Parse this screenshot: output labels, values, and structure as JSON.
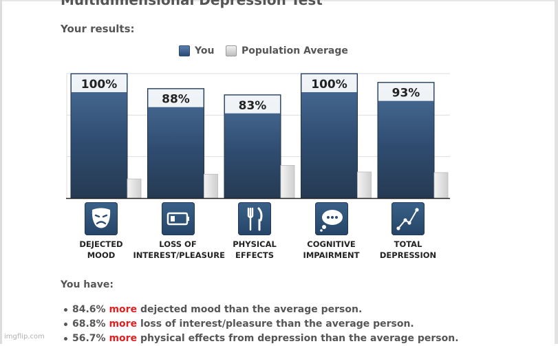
{
  "page": {
    "title": "Multidimensional Depression Test",
    "results_heading": "Your results:",
    "you_have_heading": "You have:",
    "watermark": "imgflip.com"
  },
  "colors": {
    "you_bar_top": "#4a6d97",
    "you_bar_bottom": "#263d58",
    "population_bar": "#d9d9d9",
    "highlight": "#e02020",
    "icon_tile": "#2f5479"
  },
  "chart_data": {
    "type": "bar",
    "title": "",
    "xlabel": "",
    "ylabel": "",
    "ylim": [
      0,
      100
    ],
    "grid": true,
    "legend_position": "top-center",
    "categories": [
      "DEJECTED\nMOOD",
      "LOSS OF\nINTEREST/PLEASURE",
      "PHYSICAL\nEFFECTS",
      "COGNITIVE\nIMPAIRMENT",
      "TOTAL\nDEPRESSION"
    ],
    "category_icons": [
      "sad-mask-icon",
      "low-battery-icon",
      "fork-knife-icon",
      "thought-bubble-icon",
      "line-graph-icon"
    ],
    "series": [
      {
        "name": "You",
        "values": [
          100,
          88,
          83,
          100,
          93
        ],
        "labels": [
          "100%",
          "88%",
          "83%",
          "100%",
          "93%"
        ]
      },
      {
        "name": "Population Average",
        "values": [
          15.4,
          19.2,
          26.3,
          21,
          20.5
        ]
      }
    ]
  },
  "findings": [
    {
      "value": "84.6%",
      "highlight": "more",
      "rest": "dejected mood than the average person."
    },
    {
      "value": "68.8%",
      "highlight": "more",
      "rest": "loss of interest/pleasure than the average person."
    },
    {
      "value": "56.7%",
      "highlight": "more",
      "rest": "physical effects from depression than the average person."
    }
  ]
}
